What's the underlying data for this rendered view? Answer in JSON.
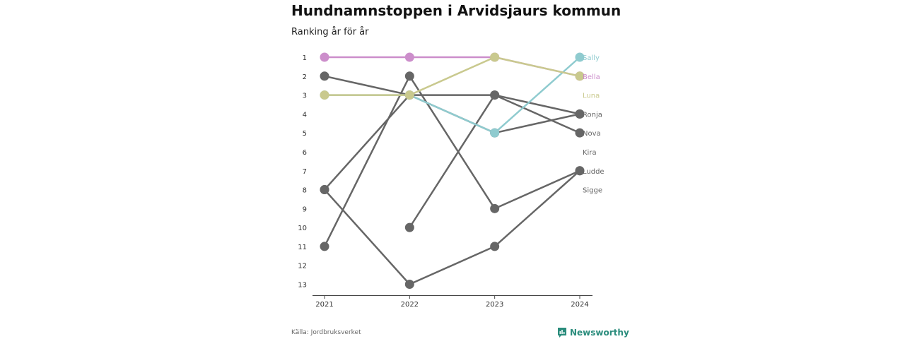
{
  "title": "Hundnamnstoppen i Arvidsjaurs kommun",
  "subtitle": "Ranking år för år",
  "source": "Källa: Jordbruksverket",
  "brand": {
    "name": "Newsworthy",
    "logo_icon": "newsworthy-logo-icon",
    "color": "#2a8c7c"
  },
  "chart_data": {
    "type": "line",
    "title": "Hundnamnstoppen i Arvidsjaurs kommun",
    "subtitle": "Ranking år för år",
    "x": [
      "2021",
      "2022",
      "2023",
      "2024"
    ],
    "y_ticks": [
      1,
      2,
      3,
      4,
      5,
      6,
      7,
      8,
      9,
      10,
      11,
      12,
      13
    ],
    "ylim": [
      1,
      13
    ],
    "y_inverted": true,
    "grid": false,
    "legend": "right-end labels",
    "series": [
      {
        "name": "Sally",
        "values": [
          3,
          3,
          5,
          1
        ],
        "color": "#8fcbcf",
        "highlight": true
      },
      {
        "name": "Bella",
        "values": [
          1,
          1,
          1,
          2
        ],
        "color": "#cc8ecb",
        "highlight": true
      },
      {
        "name": "Luna",
        "values": [
          3,
          3,
          1,
          2
        ],
        "color": "#c9c98e",
        "highlight": true
      },
      {
        "name": "Ronja",
        "values": [
          2,
          3,
          3,
          4
        ],
        "color": "#666666",
        "highlight": false
      },
      {
        "name": "Nova",
        "values": [
          8,
          3,
          5,
          4
        ],
        "color": "#666666",
        "highlight": false
      },
      {
        "name": "Kira",
        "values": [
          11,
          2,
          9,
          7
        ],
        "color": "#666666",
        "highlight": false
      },
      {
        "name": "Ludde",
        "values": [
          8,
          13,
          11,
          7
        ],
        "color": "#666666",
        "highlight": false
      },
      {
        "name": "Sigge",
        "values": [
          null,
          10,
          3,
          5
        ],
        "color": "#666666",
        "highlight": false
      }
    ]
  }
}
